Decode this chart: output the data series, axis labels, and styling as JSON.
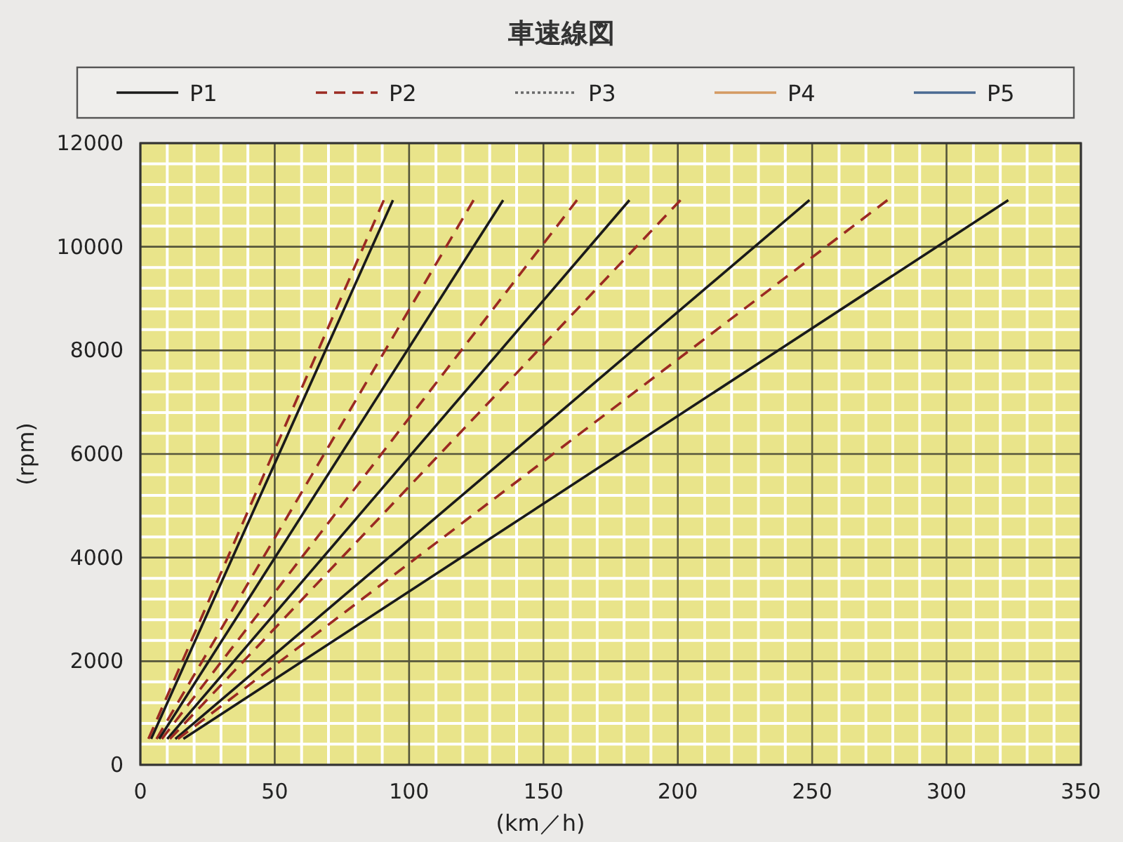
{
  "chart_data": {
    "type": "line",
    "title": "車速線図",
    "xlabel": "(km／h)",
    "ylabel": "(rpm)",
    "xlim": [
      0,
      350
    ],
    "xticks": [
      0,
      50,
      100,
      150,
      200,
      250,
      300,
      350
    ],
    "ylim": [
      0,
      12000
    ],
    "yticks": [
      0,
      2000,
      4000,
      6000,
      8000,
      10000,
      12000
    ],
    "grid": true,
    "legend": "top",
    "marker": "none",
    "series": [
      {
        "name": "P1",
        "color": "#1a1a1a",
        "line_style": "solid",
        "x": [
          4,
          94
        ],
        "values": [
          500,
          10900
        ]
      },
      {
        "name": "P2",
        "color": "#9b2a22",
        "line_style": "dashed",
        "x": [
          3,
          90.6
        ],
        "values": [
          500,
          10900
        ]
      },
      {
        "name": "P3",
        "color": "#6a6a6a",
        "line_style": "dotted"
      },
      {
        "name": "P4",
        "color": "#d49a62",
        "line_style": "solid"
      },
      {
        "name": "P5",
        "color": "#4a6a92",
        "line_style": "solid"
      },
      {
        "color": "#9b2a22",
        "line_style": "dashed",
        "x": [
          6,
          124
        ],
        "values": [
          500,
          10900
        ]
      },
      {
        "color": "#1a1a1a",
        "line_style": "solid",
        "x": [
          7,
          135
        ],
        "values": [
          500,
          10900
        ]
      },
      {
        "color": "#9b2a22",
        "line_style": "dashed",
        "x": [
          8,
          162.5
        ],
        "values": [
          500,
          10900
        ]
      },
      {
        "color": "#1a1a1a",
        "line_style": "solid",
        "x": [
          10,
          182
        ],
        "values": [
          500,
          10900
        ]
      },
      {
        "color": "#9b2a22",
        "line_style": "dashed",
        "x": [
          11,
          201
        ],
        "values": [
          500,
          10900
        ]
      },
      {
        "color": "#1a1a1a",
        "line_style": "solid",
        "x": [
          13,
          249
        ],
        "values": [
          500,
          10900
        ]
      },
      {
        "color": "#9b2a22",
        "line_style": "dashed",
        "x": [
          14,
          278
        ],
        "values": [
          500,
          10900
        ]
      },
      {
        "color": "#1a1a1a",
        "line_style": "solid",
        "x": [
          16,
          323
        ],
        "values": [
          500,
          10900
        ]
      }
    ]
  }
}
